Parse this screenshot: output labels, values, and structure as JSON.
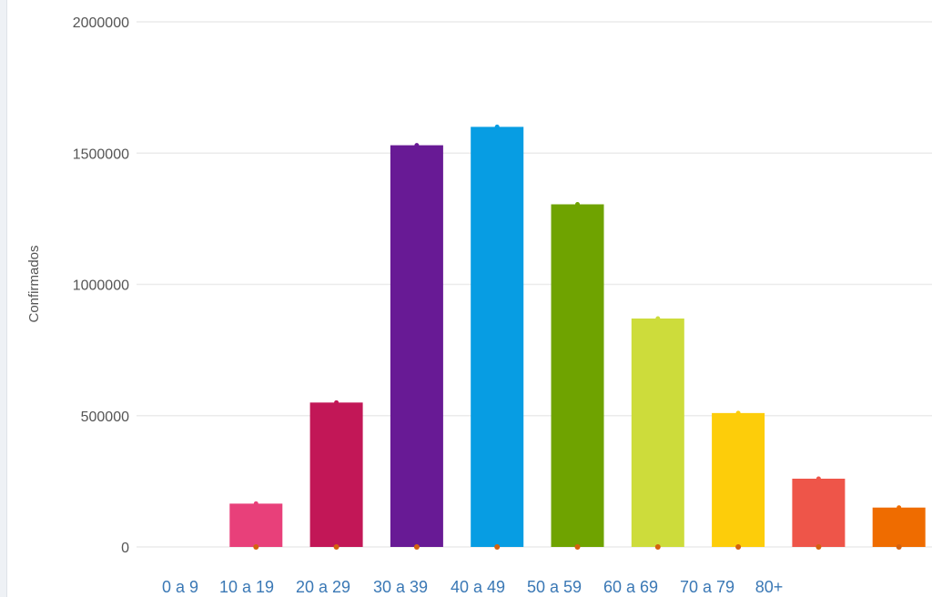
{
  "chart_data": {
    "type": "bar",
    "ylabel": "Confirmados",
    "xlabel": "",
    "ylim": [
      0,
      2000000
    ],
    "yticks": [
      0,
      500000,
      1000000,
      1500000,
      2000000
    ],
    "ytick_labels": [
      "0",
      "500000",
      "1000000",
      "1500000",
      "2000000"
    ],
    "x_tick_labels": [
      "0 a 9",
      "10 a 19",
      "20 a 29",
      "30 a 39",
      "40 a 49",
      "50 a 59",
      "60 a 69",
      "70 a 79",
      "80+"
    ],
    "bars": [
      {
        "value": 0,
        "color": "#ffffff"
      },
      {
        "value": 165000,
        "color": "#e8407a"
      },
      {
        "value": 550000,
        "color": "#c21757"
      },
      {
        "value": 1530000,
        "color": "#681a95"
      },
      {
        "value": 1600000,
        "color": "#079de3"
      },
      {
        "value": 1305000,
        "color": "#6fa300"
      },
      {
        "value": 870000,
        "color": "#cddc3b"
      },
      {
        "value": 510000,
        "color": "#fdcd0a"
      },
      {
        "value": 260000,
        "color": "#ee5549"
      },
      {
        "value": 150000,
        "color": "#ef6c00"
      }
    ],
    "grid": true,
    "gridline_color": "#ebebeb",
    "axis_text_color": "#555555",
    "xtick_color": "#3a78b5",
    "marker_color": "#d4620f"
  }
}
